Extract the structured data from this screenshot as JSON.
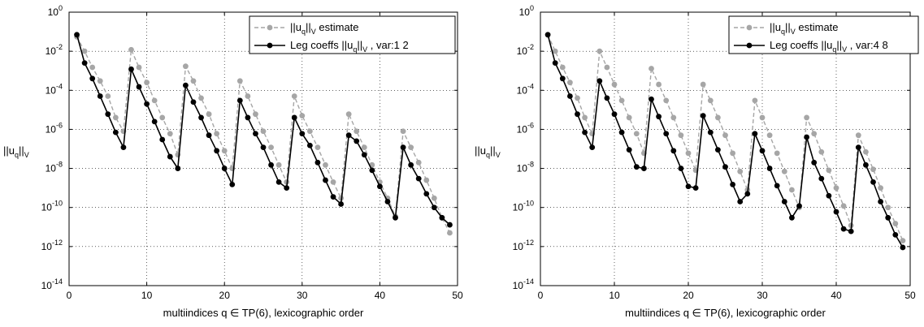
{
  "chart_data": [
    {
      "type": "line",
      "title": "",
      "xlabel": "multiindices q ∈ TP(6), lexicographic order",
      "ylabel": {
        "base": "||u",
        "sub1": "q",
        "mid": "||",
        "sub2": "V"
      },
      "xlim": [
        0,
        50
      ],
      "ylim": [
        1e-14,
        1
      ],
      "yscale": "log",
      "grid": true,
      "legend_position": "top-right",
      "x_ticks": [
        "0",
        "10",
        "20",
        "30",
        "40",
        "50"
      ],
      "y_ticks": [
        {
          "base": "10",
          "exp": "0"
        },
        {
          "base": "10",
          "exp": "-2"
        },
        {
          "base": "10",
          "exp": "-4"
        },
        {
          "base": "10",
          "exp": "-6"
        },
        {
          "base": "10",
          "exp": "-8"
        },
        {
          "base": "10",
          "exp": "-10"
        },
        {
          "base": "10",
          "exp": "-12"
        },
        {
          "base": "10",
          "exp": "-14"
        }
      ],
      "legend": [
        {
          "parts": [
            "||u",
            "q",
            "||",
            "V",
            " estimate"
          ],
          "color": "#a6a6a6",
          "dashed": true
        },
        {
          "parts": [
            "Leg coeffs ||u",
            "q",
            "||",
            "V",
            " , var:1  2"
          ],
          "color": "#000000",
          "dashed": false
        }
      ],
      "series": [
        {
          "role": "estimate",
          "color": "#a6a6a6",
          "dashed": true,
          "x": [
            1,
            2,
            3,
            4,
            5,
            6,
            7,
            8,
            9,
            10,
            11,
            12,
            13,
            14,
            15,
            16,
            17,
            18,
            19,
            20,
            21,
            22,
            23,
            24,
            25,
            26,
            27,
            28,
            29,
            30,
            31,
            32,
            33,
            34,
            35,
            36,
            37,
            38,
            39,
            40,
            41,
            42,
            43,
            44,
            45,
            46,
            47,
            48,
            49
          ],
          "y": [
            0.055,
            0.01,
            0.0015,
            0.0003,
            5e-05,
            4e-06,
            8e-07,
            0.012,
            0.0015,
            0.00025,
            3e-05,
            4e-06,
            6e-07,
            5e-08,
            0.0017,
            0.0003,
            4e-05,
            6e-06,
            6e-07,
            8e-08,
            1e-08,
            0.0003,
            5e-05,
            6e-06,
            8e-07,
            1.2e-07,
            1.5e-08,
            2e-09,
            5e-05,
            5e-06,
            8e-07,
            1.2e-07,
            1.5e-08,
            2e-09,
            3e-10,
            6e-06,
            8e-07,
            1.2e-07,
            1.5e-08,
            2e-09,
            3e-10,
            3.5e-11,
            8e-07,
            1.2e-07,
            2e-08,
            2.5e-09,
            3e-10,
            3e-11,
            5e-12
          ]
        },
        {
          "role": "coefficients",
          "color": "#000000",
          "dashed": false,
          "x": [
            1,
            2,
            3,
            4,
            5,
            6,
            7,
            8,
            9,
            10,
            11,
            12,
            13,
            14,
            15,
            16,
            17,
            18,
            19,
            20,
            21,
            22,
            23,
            24,
            25,
            26,
            27,
            28,
            29,
            30,
            31,
            32,
            33,
            34,
            35,
            36,
            37,
            38,
            39,
            40,
            41,
            42,
            43,
            44,
            45,
            46,
            47,
            48,
            49
          ],
          "y": [
            0.07,
            0.0025,
            0.0004,
            5e-05,
            6e-06,
            7e-07,
            1.2e-07,
            0.0012,
            0.00015,
            2e-05,
            2.5e-06,
            3e-07,
            4e-08,
            1e-08,
            0.00018,
            2.5e-05,
            4e-06,
            5e-07,
            8e-08,
            1e-08,
            1.5e-09,
            3e-05,
            4e-06,
            6e-07,
            1.2e-07,
            1.5e-08,
            2e-09,
            1e-09,
            4e-06,
            6e-07,
            1.5e-07,
            2e-08,
            2.5e-09,
            3.5e-10,
            1.5e-10,
            5e-07,
            2.5e-07,
            5e-08,
            8e-09,
            1.2e-09,
            2e-10,
            3e-11,
            1.2e-07,
            1.5e-08,
            3e-09,
            5e-10,
            1e-10,
            3e-11,
            1.3e-11
          ]
        }
      ]
    },
    {
      "type": "line",
      "title": "",
      "xlabel": "multiindices q ∈ TP(6), lexicographic order",
      "ylabel": {
        "base": "||u",
        "sub1": "q",
        "mid": "||",
        "sub2": "V"
      },
      "xlim": [
        0,
        50
      ],
      "ylim": [
        1e-14,
        1
      ],
      "yscale": "log",
      "grid": true,
      "legend_position": "top-right",
      "x_ticks": [
        "0",
        "10",
        "20",
        "30",
        "40",
        "50"
      ],
      "y_ticks": [
        {
          "base": "10",
          "exp": "0"
        },
        {
          "base": "10",
          "exp": "-2"
        },
        {
          "base": "10",
          "exp": "-4"
        },
        {
          "base": "10",
          "exp": "-6"
        },
        {
          "base": "10",
          "exp": "-8"
        },
        {
          "base": "10",
          "exp": "-10"
        },
        {
          "base": "10",
          "exp": "-12"
        },
        {
          "base": "10",
          "exp": "-14"
        }
      ],
      "legend": [
        {
          "parts": [
            "||u",
            "q",
            "||",
            "V",
            " estimate"
          ],
          "color": "#a6a6a6",
          "dashed": true
        },
        {
          "parts": [
            "Leg coeffs ||u",
            "q",
            "||",
            "V",
            " , var:4  8"
          ],
          "color": "#000000",
          "dashed": false
        }
      ],
      "series": [
        {
          "role": "estimate",
          "color": "#a6a6a6",
          "dashed": true,
          "x": [
            1,
            2,
            3,
            4,
            5,
            6,
            7,
            8,
            9,
            10,
            11,
            12,
            13,
            14,
            15,
            16,
            17,
            18,
            19,
            20,
            21,
            22,
            23,
            24,
            25,
            26,
            27,
            28,
            29,
            30,
            31,
            32,
            33,
            34,
            35,
            36,
            37,
            38,
            39,
            40,
            41,
            42,
            43,
            44,
            45,
            46,
            47,
            48,
            49
          ],
          "y": [
            0.07,
            0.01,
            0.0015,
            0.00025,
            4e-05,
            4e-06,
            6e-07,
            0.01,
            0.0015,
            0.0002,
            3e-05,
            4e-06,
            6e-07,
            6e-08,
            0.0013,
            0.0002,
            3e-05,
            4e-06,
            5e-07,
            6e-08,
            8e-09,
            0.0002,
            3e-05,
            4e-06,
            5e-07,
            6e-08,
            7e-09,
            8e-10,
            3e-05,
            4e-06,
            5e-07,
            6e-08,
            7e-09,
            8e-10,
            1e-10,
            4e-06,
            6e-07,
            7e-08,
            8e-09,
            1e-09,
            1.2e-10,
            1.2e-11,
            5e-07,
            7e-08,
            9e-09,
            1e-09,
            1e-10,
            1.5e-11,
            2e-12
          ]
        },
        {
          "role": "coefficients",
          "color": "#000000",
          "dashed": false,
          "x": [
            1,
            2,
            3,
            4,
            5,
            6,
            7,
            8,
            9,
            10,
            11,
            12,
            13,
            14,
            15,
            16,
            17,
            18,
            19,
            20,
            21,
            22,
            23,
            24,
            25,
            26,
            27,
            28,
            29,
            30,
            31,
            32,
            33,
            34,
            35,
            36,
            37,
            38,
            39,
            40,
            41,
            42,
            43,
            44,
            45,
            46,
            47,
            48,
            49
          ],
          "y": [
            0.07,
            0.0025,
            0.0004,
            5e-05,
            6e-06,
            7e-07,
            1.2e-07,
            0.0003,
            4e-05,
            6e-06,
            7e-07,
            9e-08,
            1.2e-08,
            1e-08,
            3.5e-05,
            4.5e-06,
            6e-07,
            8e-08,
            1e-08,
            1.2e-09,
            1e-09,
            5e-06,
            7e-07,
            9e-08,
            1.2e-08,
            1.5e-09,
            2e-10,
            5e-10,
            6e-07,
            8e-08,
            1e-08,
            1.3e-09,
            2e-10,
            3e-11,
            1.2e-10,
            4e-07,
            2e-08,
            3e-09,
            4e-10,
            6e-11,
            8e-12,
            6e-12,
            1.2e-07,
            1.5e-08,
            2e-09,
            2e-10,
            3e-11,
            4e-12,
            9e-13
          ]
        }
      ]
    }
  ]
}
